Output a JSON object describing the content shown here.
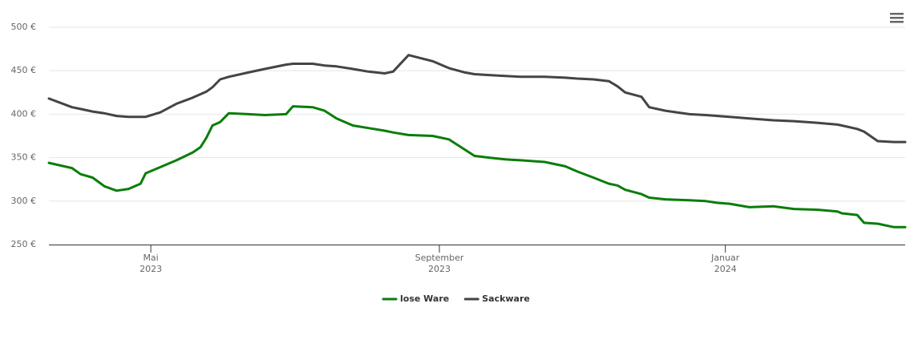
{
  "chart_data": {
    "type": "line",
    "x": [
      2023.21,
      2023.237,
      2023.247,
      2023.261,
      2023.275,
      2023.289,
      2023.303,
      2023.317,
      2023.323,
      2023.34,
      2023.359,
      2023.378,
      2023.387,
      2023.394,
      2023.401,
      2023.41,
      2023.42,
      2023.443,
      2023.462,
      2023.487,
      2023.495,
      2023.518,
      2023.532,
      2023.546,
      2023.565,
      2023.583,
      2023.602,
      2023.612,
      2023.63,
      2023.658,
      2023.677,
      2023.696,
      2023.707,
      2023.724,
      2023.743,
      2023.761,
      2023.789,
      2023.813,
      2023.827,
      2023.846,
      2023.864,
      2023.874,
      2023.883,
      2023.902,
      2023.911,
      2023.93,
      2023.958,
      2023.977,
      2023.991,
      2024.005,
      2024.028,
      2024.056,
      2024.08,
      2024.108,
      2024.131,
      2024.136,
      2024.154,
      2024.162,
      2024.178,
      2024.197,
      2024.21
    ],
    "series": [
      {
        "name": "lose Ware",
        "color": "#0a7d0a",
        "values": [
          344,
          338,
          331,
          327,
          317,
          312,
          314,
          320,
          332,
          339,
          347,
          356,
          362,
          373,
          387,
          391,
          401,
          400,
          399,
          400,
          409,
          408,
          404,
          395,
          387,
          384,
          381,
          379,
          376,
          375,
          371,
          359,
          352,
          350,
          348,
          347,
          345,
          340,
          334,
          327,
          320,
          318,
          313,
          308,
          304,
          302,
          301,
          300,
          298,
          297,
          293,
          294,
          291,
          290,
          288,
          286,
          284,
          275,
          274,
          270,
          270
        ]
      },
      {
        "name": "Sackware",
        "color": "#444444",
        "values": [
          418,
          408,
          406,
          403,
          401,
          398,
          397,
          397,
          397,
          402,
          412,
          419,
          423,
          426,
          431,
          440,
          443,
          448,
          452,
          457,
          458,
          458,
          456,
          455,
          452,
          449,
          447,
          449,
          468,
          461,
          453,
          448,
          446,
          445,
          444,
          443,
          443,
          442,
          441,
          440,
          438,
          432,
          425,
          420,
          408,
          404,
          400,
          399,
          398,
          397,
          395,
          393,
          392,
          390,
          388,
          387,
          383,
          380,
          369,
          368,
          368
        ]
      }
    ],
    "xlim": [
      2023.21,
      2024.21
    ],
    "xticks": [
      {
        "value": 2023.329,
        "label": [
          "Mai",
          "2023"
        ]
      },
      {
        "value": 2023.666,
        "label": [
          "September",
          "2023"
        ]
      },
      {
        "value": 2024.0,
        "label": [
          "Januar",
          "2024"
        ]
      }
    ],
    "ylim": [
      250,
      500
    ],
    "yticks": [
      {
        "value": 250,
        "label": "250 €"
      },
      {
        "value": 300,
        "label": "300 €"
      },
      {
        "value": 350,
        "label": "350 €"
      },
      {
        "value": 400,
        "label": "400 €"
      },
      {
        "value": 450,
        "label": "450 €"
      },
      {
        "value": 500,
        "label": "500 €"
      }
    ],
    "grid": true,
    "legend": "bottom"
  }
}
